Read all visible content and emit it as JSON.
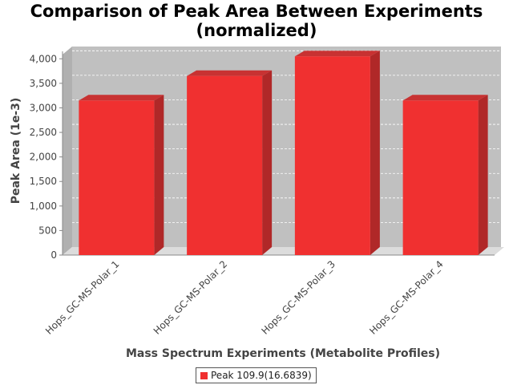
{
  "chart_data": {
    "type": "bar",
    "title_line1": "Comparison of Peak Area Between Experiments",
    "title_line2": "(normalized)",
    "xlabel": "Mass Spectrum Experiments (Metabolite Profiles)",
    "ylabel": "Peak Area (1e-3)",
    "categories": [
      "Hops_GC-MS-Polar_1",
      "Hops_GC-MS-Polar_2",
      "Hops_GC-MS-Polar_3",
      "Hops_GC-MS-Polar_4"
    ],
    "series": [
      {
        "name": "Peak 109.9(16.6839)",
        "values": [
          3150,
          3650,
          4050,
          3150
        ]
      }
    ],
    "ylim": [
      0,
      4250
    ],
    "yticks": [
      0,
      500,
      1000,
      1500,
      2000,
      2500,
      3000,
      3500,
      4000
    ],
    "ytick_labels": [
      "0",
      "500",
      "1,000",
      "1,500",
      "2,000",
      "2,500",
      "3,000",
      "3,500",
      "4,000"
    ],
    "grid": true,
    "legend_position": "bottom",
    "colors": {
      "bar_front": "#f03030",
      "bar_side": "#b02828",
      "bar_top": "#c83232",
      "plot_background": "#c0c0c0",
      "floor": "#dcdcdc"
    }
  }
}
